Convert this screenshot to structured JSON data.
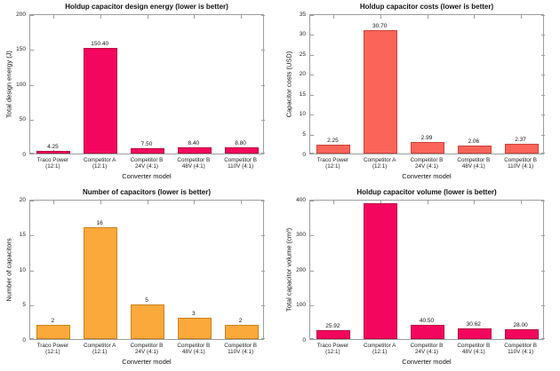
{
  "figure": {
    "background": "#ffffff",
    "axis_color": "#9e9e9e",
    "layout": "2x2 grid of bar charts"
  },
  "chart_data": [
    {
      "type": "bar",
      "title": "Holdup capacitor design energy (lower is better)",
      "xlabel": "Converter model",
      "ylabel": "Total design energy (J)",
      "ylim": [
        0,
        200
      ],
      "yticks": [
        0,
        50,
        100,
        150,
        200
      ],
      "categories": [
        [
          "Traco Power",
          "(12:1)"
        ],
        [
          "Competitor A",
          "(12:1)"
        ],
        [
          "Competitor B",
          "24V (4:1)"
        ],
        [
          "Competitor B",
          "48V (4:1)"
        ],
        [
          "Competitor B",
          "110V (4:1)"
        ]
      ],
      "values": [
        4.25,
        150.4,
        7.5,
        8.4,
        8.8
      ],
      "value_labels": [
        "4.25",
        "150.40",
        "7.50",
        "8.40",
        "8.80"
      ],
      "bar_color": "#f3075e",
      "bar_edge": "#b9063f",
      "grid": false,
      "legend": null
    },
    {
      "type": "bar",
      "title": "Holdup capacitor costs (lower is better)",
      "xlabel": "Converter model",
      "ylabel": "Capacitor costs (USD)",
      "ylim": [
        0,
        35
      ],
      "yticks": [
        0,
        5,
        10,
        15,
        20,
        25,
        30,
        35
      ],
      "categories": [
        [
          "Traco Power",
          "(12:1)"
        ],
        [
          "Competitor A",
          "(12:1)"
        ],
        [
          "Competitor B",
          "24V (4:1)"
        ],
        [
          "Competitor B",
          "48V (4:1)"
        ],
        [
          "Competitor B",
          "110V (4:1)"
        ]
      ],
      "values": [
        2.25,
        30.7,
        2.99,
        2.06,
        2.37
      ],
      "value_labels": [
        "2.25",
        "30.70",
        "2.99",
        "2.06",
        "2.37"
      ],
      "bar_color": "#fa6459",
      "bar_edge": "#c8443b",
      "grid": false,
      "legend": null
    },
    {
      "type": "bar",
      "title": "Number of capacitors (lower is better)",
      "xlabel": "Converter model",
      "ylabel": "Number of capacitors",
      "ylim": [
        0,
        20
      ],
      "yticks": [
        0,
        5,
        10,
        15,
        20
      ],
      "categories": [
        [
          "Traco Power",
          "(12:1)"
        ],
        [
          "Competitor A",
          "(12:1)"
        ],
        [
          "Competitor B",
          "24V (4:1)"
        ],
        [
          "Competitor B",
          "48V (4:1)"
        ],
        [
          "Competitor B",
          "110V (4:1)"
        ]
      ],
      "values": [
        2,
        16,
        5,
        3,
        2
      ],
      "value_labels": [
        "2",
        "16",
        "5",
        "3",
        "2"
      ],
      "bar_color": "#fba93b",
      "bar_edge": "#c9831e",
      "grid": false,
      "legend": null
    },
    {
      "type": "bar",
      "title": "Holdup capacitor volume (lower is better)",
      "xlabel": "Converter model",
      "ylabel": "Total capacitor volume (cm³)",
      "ylim": [
        0,
        400
      ],
      "yticks": [
        0,
        100,
        200,
        300,
        400
      ],
      "categories": [
        [
          "Traco Power",
          "(12:1)"
        ],
        [
          "Competitor A",
          "(12:1)"
        ],
        [
          "Competitor B",
          "24V (4:1)"
        ],
        [
          "Competitor B",
          "48V (4:1)"
        ],
        [
          "Competitor B",
          "110V (4:1)"
        ]
      ],
      "values": [
        25.92,
        387.4,
        40.5,
        30.62,
        28.0
      ],
      "value_labels": [
        "25.92",
        null,
        "40.50",
        "30.62",
        "28.00"
      ],
      "bar_color": "#f3075e",
      "bar_edge": "#b9063f",
      "grid": false,
      "legend": null
    }
  ]
}
